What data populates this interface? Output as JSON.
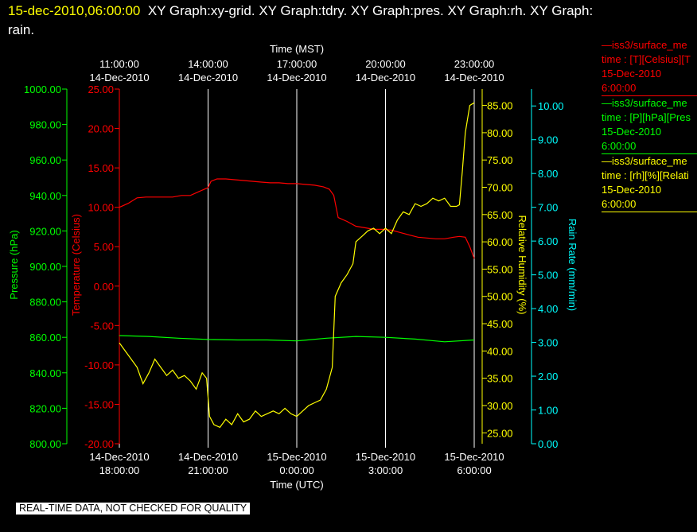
{
  "header": {
    "date": "15-dec-2010,06:00:00",
    "graphs": "XY Graph:xy-grid.  XY Graph:tdry.  XY Graph:pres.  XY Graph:rh.  XY Graph:",
    "graphs_tail": "rain."
  },
  "legend": [
    {
      "line1": "—iss3/surface_me",
      "line2": "time : [T][Celsius][T",
      "line3": "15-Dec-2010",
      "line4": "6:00:00",
      "color": "#ff0000"
    },
    {
      "line1": "—iss3/surface_me",
      "line2": "time : [P][hPa][Pres",
      "line3": "15-Dec-2010",
      "line4": "6:00:00",
      "color": "#00ff00"
    },
    {
      "line1": "—iss3/surface_me",
      "line2": "time : [rh][%][Relati",
      "line3": "15-Dec-2010",
      "line4": "6:00:00",
      "color": "#ffff00"
    }
  ],
  "disclaimer": "REAL-TIME DATA, NOT CHECKED FOR QUALITY",
  "colors": {
    "temperature": "#ff0000",
    "pressure": "#00ff00",
    "humidity": "#ffff00",
    "rain": "#00ffff",
    "grid": "#ffffff",
    "background": "#000000"
  },
  "chart_data": {
    "type": "line",
    "top_axis": {
      "label": "Time (MST)",
      "ticks": [
        {
          "time": "11:00:00",
          "date": "14-Dec-2010",
          "utc_hours": 18
        },
        {
          "time": "14:00:00",
          "date": "14-Dec-2010",
          "utc_hours": 21
        },
        {
          "time": "17:00:00",
          "date": "14-Dec-2010",
          "utc_hours": 24
        },
        {
          "time": "20:00:00",
          "date": "14-Dec-2010",
          "utc_hours": 27
        },
        {
          "time": "23:00:00",
          "date": "14-Dec-2010",
          "utc_hours": 30
        }
      ]
    },
    "bottom_axis": {
      "label": "Time (UTC)",
      "range": [
        "2010-12-14 18:00",
        "2010-12-15 06:00"
      ],
      "ticks": [
        {
          "date": "14-Dec-2010",
          "time": "18:00:00",
          "utc_hours": 18
        },
        {
          "date": "14-Dec-2010",
          "time": "21:00:00",
          "utc_hours": 21
        },
        {
          "date": "15-Dec-2010",
          "time": "0:00:00",
          "utc_hours": 24
        },
        {
          "date": "15-Dec-2010",
          "time": "3:00:00",
          "utc_hours": 27
        },
        {
          "date": "15-Dec-2010",
          "time": "6:00:00",
          "utc_hours": 30
        }
      ]
    },
    "y_axes": [
      {
        "id": "pressure",
        "label": "Pressure (hPa)",
        "range": [
          800,
          1000
        ],
        "ticks": [
          "800.00",
          "820.00",
          "840.00",
          "860.00",
          "880.00",
          "900.00",
          "920.00",
          "940.00",
          "960.00",
          "980.00",
          "1000.00"
        ]
      },
      {
        "id": "temperature",
        "label": "Temperature (Celsius)",
        "range": [
          -20,
          25
        ],
        "ticks": [
          "-20.00",
          "-15.00",
          "-10.00",
          "-5.00",
          "0.00",
          "5.00",
          "10.00",
          "15.00",
          "20.00",
          "25.00"
        ]
      },
      {
        "id": "humidity",
        "label": "Relative Humidity (%)",
        "range": [
          23,
          88
        ],
        "ticks": [
          "25.00",
          "30.00",
          "35.00",
          "40.00",
          "45.00",
          "50.00",
          "55.00",
          "60.00",
          "65.00",
          "70.00",
          "75.00",
          "80.00",
          "85.00"
        ]
      },
      {
        "id": "rain",
        "label": "Rain Rate (mm/min)",
        "range": [
          0,
          10.5
        ],
        "ticks": [
          "0.00",
          "1.00",
          "2.00",
          "3.00",
          "4.00",
          "5.00",
          "6.00",
          "7.00",
          "8.00",
          "9.00",
          "10.00"
        ]
      }
    ],
    "series": [
      {
        "axis": "temperature",
        "points": [
          [
            18.0,
            10.0
          ],
          [
            18.3,
            10.5
          ],
          [
            18.6,
            11.2
          ],
          [
            18.9,
            11.3
          ],
          [
            19.2,
            11.3
          ],
          [
            19.5,
            11.3
          ],
          [
            19.8,
            11.3
          ],
          [
            20.1,
            11.5
          ],
          [
            20.4,
            11.5
          ],
          [
            20.7,
            12.0
          ],
          [
            21.0,
            12.5
          ],
          [
            21.1,
            13.3
          ],
          [
            21.3,
            13.6
          ],
          [
            21.6,
            13.6
          ],
          [
            21.9,
            13.5
          ],
          [
            22.2,
            13.4
          ],
          [
            22.5,
            13.3
          ],
          [
            22.8,
            13.2
          ],
          [
            23.1,
            13.1
          ],
          [
            23.4,
            13.1
          ],
          [
            23.7,
            13.0
          ],
          [
            24.0,
            13.0
          ],
          [
            24.3,
            12.9
          ],
          [
            24.6,
            12.8
          ],
          [
            24.9,
            12.6
          ],
          [
            25.1,
            12.3
          ],
          [
            25.25,
            11.5
          ],
          [
            25.4,
            8.7
          ],
          [
            25.7,
            8.2
          ],
          [
            26.0,
            7.6
          ],
          [
            26.3,
            7.4
          ],
          [
            26.6,
            7.2
          ],
          [
            26.9,
            7.2
          ],
          [
            27.2,
            7.1
          ],
          [
            27.5,
            6.8
          ],
          [
            27.8,
            6.5
          ],
          [
            28.1,
            6.2
          ],
          [
            28.4,
            6.1
          ],
          [
            28.7,
            6.0
          ],
          [
            29.0,
            6.0
          ],
          [
            29.3,
            6.2
          ],
          [
            29.5,
            6.3
          ],
          [
            29.7,
            6.2
          ],
          [
            29.85,
            5.0
          ],
          [
            30.0,
            3.5
          ]
        ]
      },
      {
        "axis": "pressure",
        "points": [
          [
            18.0,
            861.0
          ],
          [
            19.0,
            860.5
          ],
          [
            20.0,
            859.5
          ],
          [
            21.0,
            858.8
          ],
          [
            22.0,
            858.5
          ],
          [
            23.0,
            858.5
          ],
          [
            24.0,
            858.0
          ],
          [
            25.0,
            859.5
          ],
          [
            26.0,
            860.5
          ],
          [
            27.0,
            860.0
          ],
          [
            28.0,
            859.0
          ],
          [
            29.0,
            857.5
          ],
          [
            30.0,
            858.5
          ]
        ]
      },
      {
        "axis": "humidity",
        "points": [
          [
            18.0,
            41.5
          ],
          [
            18.2,
            40.0
          ],
          [
            18.4,
            38.5
          ],
          [
            18.6,
            37.0
          ],
          [
            18.8,
            34.0
          ],
          [
            19.0,
            36.0
          ],
          [
            19.2,
            38.5
          ],
          [
            19.4,
            37.0
          ],
          [
            19.6,
            35.5
          ],
          [
            19.8,
            36.5
          ],
          [
            20.0,
            35.0
          ],
          [
            20.2,
            35.5
          ],
          [
            20.4,
            34.5
          ],
          [
            20.6,
            33.0
          ],
          [
            20.8,
            36.0
          ],
          [
            20.95,
            35.0
          ],
          [
            21.05,
            28.0
          ],
          [
            21.2,
            26.5
          ],
          [
            21.4,
            26.0
          ],
          [
            21.6,
            27.5
          ],
          [
            21.8,
            26.5
          ],
          [
            22.0,
            28.5
          ],
          [
            22.2,
            27.0
          ],
          [
            22.4,
            27.5
          ],
          [
            22.6,
            29.0
          ],
          [
            22.8,
            28.0
          ],
          [
            23.0,
            28.5
          ],
          [
            23.2,
            29.0
          ],
          [
            23.4,
            28.5
          ],
          [
            23.6,
            29.5
          ],
          [
            23.8,
            28.5
          ],
          [
            24.0,
            28.0
          ],
          [
            24.2,
            29.0
          ],
          [
            24.4,
            30.0
          ],
          [
            24.6,
            30.5
          ],
          [
            24.8,
            31.0
          ],
          [
            25.0,
            33.0
          ],
          [
            25.2,
            37.0
          ],
          [
            25.3,
            50.0
          ],
          [
            25.5,
            52.5
          ],
          [
            25.7,
            54.0
          ],
          [
            25.9,
            56.0
          ],
          [
            26.0,
            60.0
          ],
          [
            26.2,
            61.0
          ],
          [
            26.4,
            62.0
          ],
          [
            26.6,
            62.5
          ],
          [
            26.8,
            61.5
          ],
          [
            27.0,
            62.5
          ],
          [
            27.2,
            61.5
          ],
          [
            27.4,
            64.0
          ],
          [
            27.6,
            65.5
          ],
          [
            27.8,
            65.0
          ],
          [
            28.0,
            67.0
          ],
          [
            28.2,
            66.5
          ],
          [
            28.4,
            67.0
          ],
          [
            28.6,
            68.0
          ],
          [
            28.8,
            67.5
          ],
          [
            29.0,
            68.0
          ],
          [
            29.2,
            66.5
          ],
          [
            29.4,
            66.5
          ],
          [
            29.5,
            66.8
          ],
          [
            29.6,
            73.0
          ],
          [
            29.7,
            80.0
          ],
          [
            29.85,
            85.0
          ],
          [
            30.0,
            85.5
          ]
        ]
      }
    ]
  }
}
